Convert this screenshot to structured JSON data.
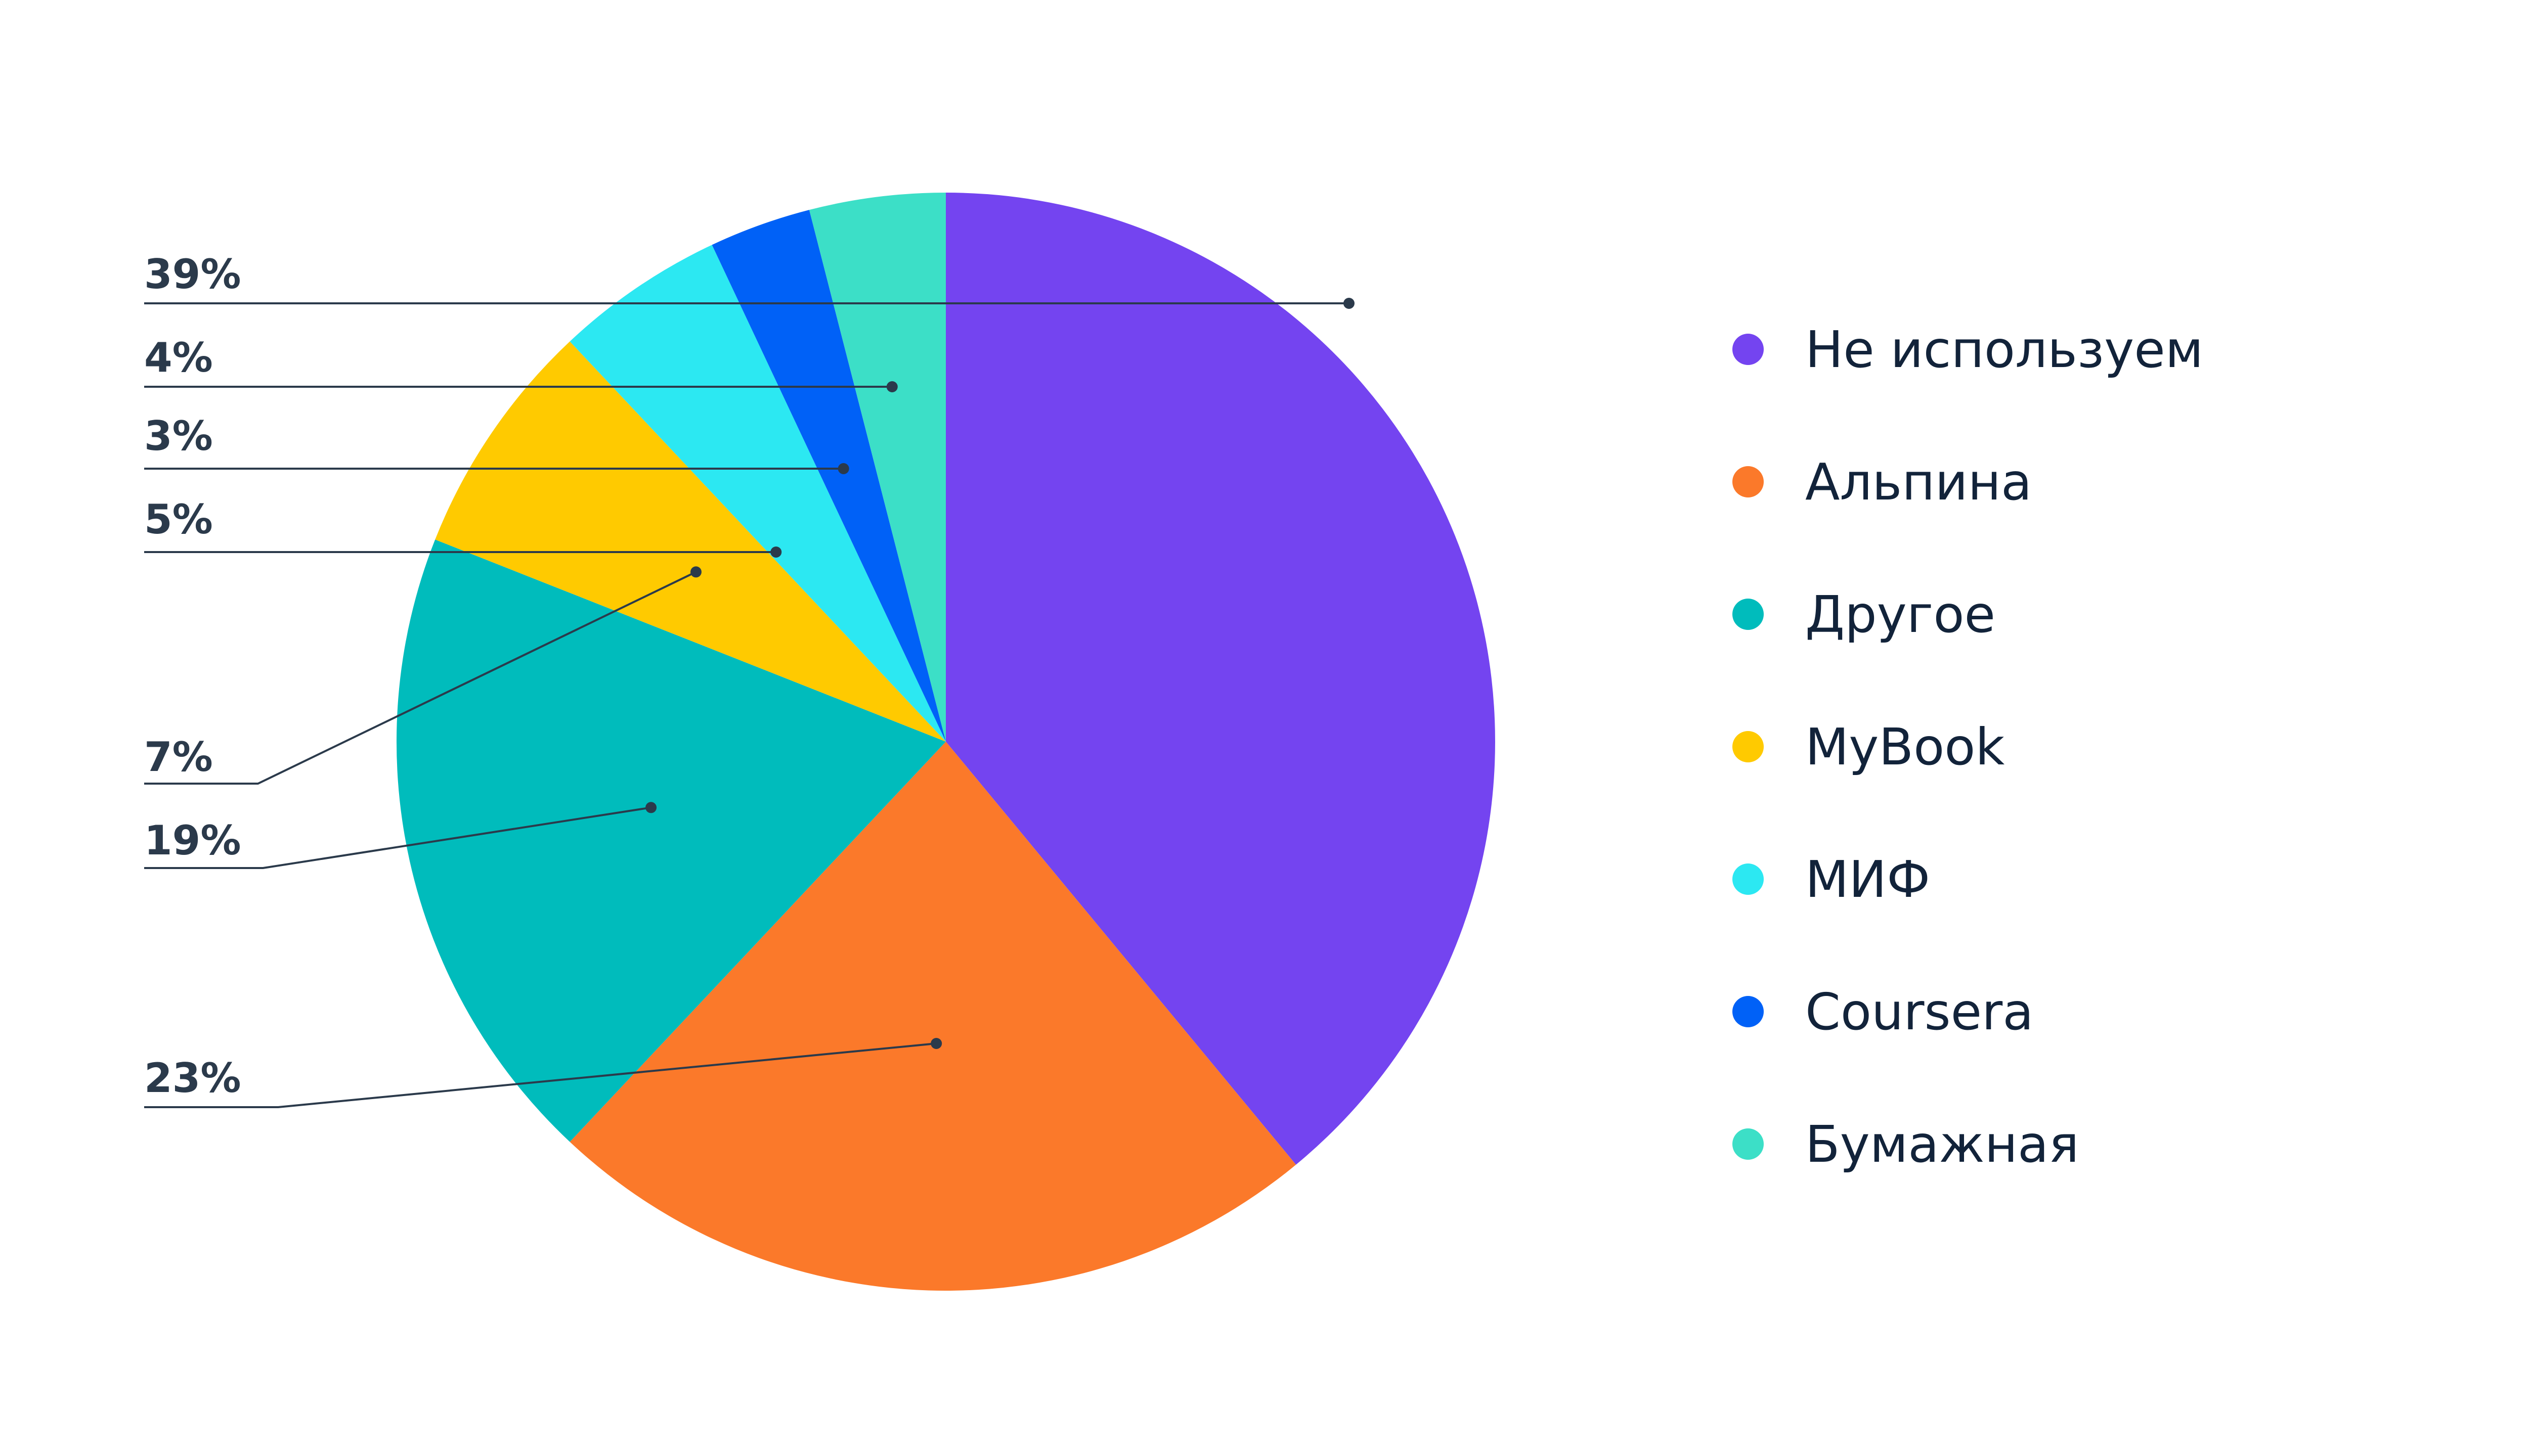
{
  "chart_data": {
    "type": "pie",
    "title": "",
    "slices": [
      {
        "name": "Не используем",
        "value": 39,
        "label": "39%",
        "color": "#7444f0"
      },
      {
        "name": "Альпина",
        "value": 23,
        "label": "23%",
        "color": "#fb792a"
      },
      {
        "name": "Другое",
        "value": 19,
        "label": "19%",
        "color": "#00bcbc"
      },
      {
        "name": "MyBook",
        "value": 7,
        "label": "7%",
        "color": "#ffca00"
      },
      {
        "name": "МИФ",
        "value": 5,
        "label": "5%",
        "color": "#2ce8f2"
      },
      {
        "name": "Coursera",
        "value": 3,
        "label": "3%",
        "color": "#0061f7"
      },
      {
        "name": "Бумажная",
        "value": 4,
        "label": "4%",
        "color": "#3cdfc7"
      }
    ],
    "legend_position": "right",
    "data_labels_position": "left"
  },
  "legend": {
    "items": [
      {
        "label": "Не используем",
        "color": "#7444f0"
      },
      {
        "label": "Альпина",
        "color": "#fb792a"
      },
      {
        "label": "Другое",
        "color": "#00bcbc"
      },
      {
        "label": "MyBook",
        "color": "#ffca00"
      },
      {
        "label": "МИФ",
        "color": "#2ce8f2"
      },
      {
        "label": "Coursera",
        "color": "#0061f7"
      },
      {
        "label": "Бумажная",
        "color": "#3cdfc7"
      }
    ]
  },
  "colors": {
    "label_text": "#2b3a4b",
    "leader_line": "#2b3a4b",
    "legend_text": "#12233a"
  }
}
